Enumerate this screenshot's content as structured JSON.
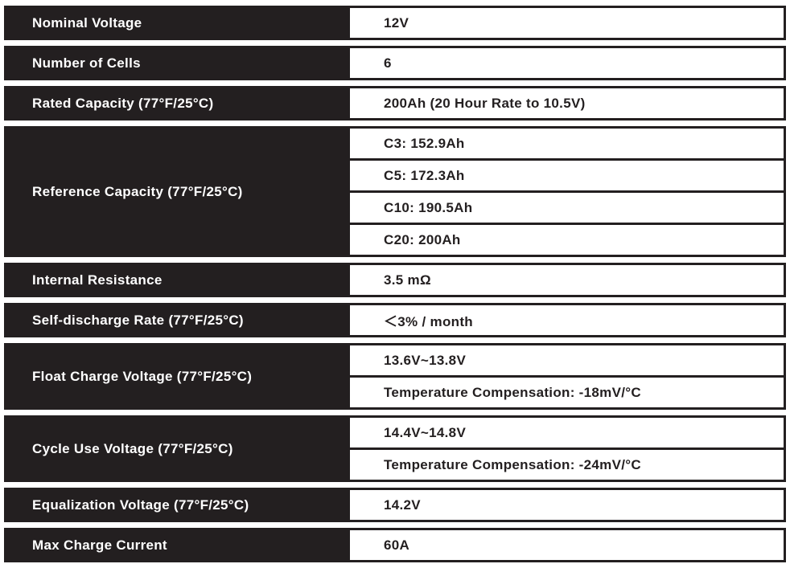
{
  "rows": [
    {
      "label": "Nominal Voltage",
      "values": [
        "12V"
      ]
    },
    {
      "label": "Number of Cells",
      "values": [
        "6"
      ]
    },
    {
      "label": "Rated Capacity (77°F/25°C)",
      "values": [
        "200Ah (20 Hour Rate to 10.5V)"
      ]
    },
    {
      "label": "Reference Capacity (77°F/25°C)",
      "values": [
        "C3: 152.9Ah",
        "C5: 172.3Ah",
        "C10: 190.5Ah",
        "C20: 200Ah"
      ]
    },
    {
      "label": "Internal Resistance",
      "values": [
        "3.5 mΩ"
      ]
    },
    {
      "label": "Self-discharge Rate (77°F/25°C)",
      "values": [
        "＜3% / month"
      ]
    },
    {
      "label": "Float Charge Voltage (77°F/25°C)",
      "values": [
        "13.6V~13.8V",
        "Temperature Compensation: -18mV/°C"
      ]
    },
    {
      "label": "Cycle Use Voltage (77°F/25°C)",
      "values": [
        "14.4V~14.8V",
        "Temperature Compensation: -24mV/°C"
      ]
    },
    {
      "label": "Equalization Voltage (77°F/25°C)",
      "values": [
        "14.2V"
      ]
    },
    {
      "label": "Max Charge Current",
      "values": [
        "60A"
      ]
    }
  ],
  "colors": {
    "dark": "#231f20",
    "light": "#ffffff"
  }
}
